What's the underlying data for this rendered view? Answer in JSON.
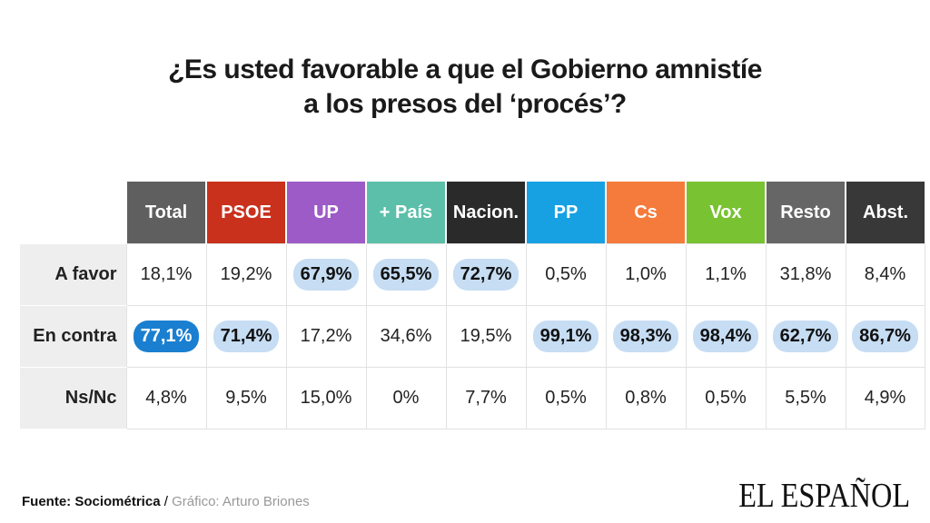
{
  "chart_data": {
    "type": "table",
    "title_line1": "¿Es usted favorable a que el Gobierno amnistíe",
    "title_line2": "a los presos del ‘procés’?",
    "columns": [
      {
        "label": "Total",
        "color": "#5f5f5f"
      },
      {
        "label": "PSOE",
        "color": "#c9311d"
      },
      {
        "label": "UP",
        "color": "#9c5bc7"
      },
      {
        "label": "+ País",
        "color": "#5cbfa9"
      },
      {
        "label": "Nacion.",
        "color": "#2a2a2a"
      },
      {
        "label": "PP",
        "color": "#17a1e2"
      },
      {
        "label": "Cs",
        "color": "#f47b3b"
      },
      {
        "label": "Vox",
        "color": "#79c232"
      },
      {
        "label": "Resto",
        "color": "#666666"
      },
      {
        "label": "Abst.",
        "color": "#383838"
      }
    ],
    "rows": [
      {
        "label": "A favor",
        "values": [
          "18,1%",
          "19,2%",
          "67,9%",
          "65,5%",
          "72,7%",
          "0,5%",
          "1,0%",
          "1,1%",
          "31,8%",
          "8,4%"
        ],
        "highlight": [
          "",
          "",
          "light",
          "light",
          "light",
          "",
          "",
          "",
          "",
          ""
        ]
      },
      {
        "label": "En contra",
        "values": [
          "77,1%",
          "71,4%",
          "17,2%",
          "34,6%",
          "19,5%",
          "99,1%",
          "98,3%",
          "98,4%",
          "62,7%",
          "86,7%"
        ],
        "highlight": [
          "dark",
          "light",
          "",
          "",
          "",
          "light",
          "light",
          "light",
          "light",
          "light"
        ]
      },
      {
        "label": "Ns/Nc",
        "values": [
          "4,8%",
          "9,5%",
          "15,0%",
          "0%",
          "7,7%",
          "0,5%",
          "0,8%",
          "0,5%",
          "5,5%",
          "4,9%"
        ],
        "highlight": [
          "",
          "",
          "",
          "",
          "",
          "",
          "",
          "",
          "",
          ""
        ]
      }
    ]
  },
  "footer": {
    "source": "Fuente: Sociométrica",
    "separator": " / ",
    "credit": "Gráfico: Arturo Briones"
  },
  "logo": "EL ESPAÑOL"
}
